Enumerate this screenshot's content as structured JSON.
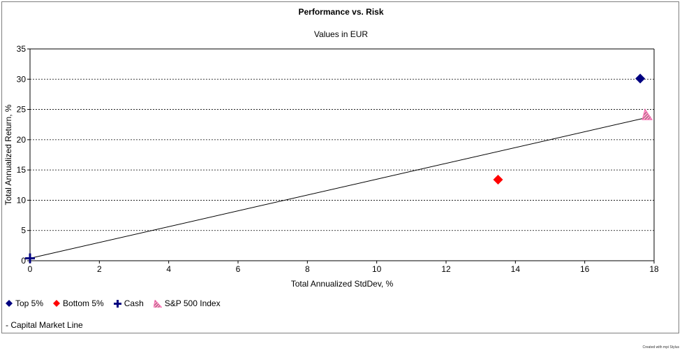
{
  "chart_data": {
    "type": "scatter",
    "title": "Performance vs. Risk",
    "subtitle": "Values in EUR",
    "xlabel": "Total Annualized StdDev, %",
    "ylabel": "Total Annualized Return, %",
    "xlim": [
      0,
      18
    ],
    "ylim": [
      0,
      35
    ],
    "xticks": [
      "0",
      "2",
      "4",
      "6",
      "8",
      "10",
      "12",
      "14",
      "16",
      "18"
    ],
    "yticks": [
      "0",
      "5",
      "10",
      "15",
      "20",
      "25",
      "30",
      "35"
    ],
    "grid": "horizontal dotted",
    "series": [
      {
        "name": "Top 5%",
        "marker": "diamond",
        "color": "#000080",
        "x": 17.6,
        "y": 30.1
      },
      {
        "name": "Bottom 5%",
        "marker": "diamond",
        "color": "#ff0000",
        "x": 13.5,
        "y": 13.4
      },
      {
        "name": "Cash",
        "marker": "plus",
        "color": "#000080",
        "x": 0.0,
        "y": 0.4
      },
      {
        "name": "S&P 500 Index",
        "marker": "hatched-triangle",
        "color": "#ff69b4",
        "x": 17.8,
        "y": 24.0
      }
    ],
    "line": {
      "name": "- Capital Market Line",
      "x": [
        0.0,
        17.9
      ],
      "y": [
        0.4,
        23.8
      ]
    },
    "legend_position": "bottom-left"
  },
  "footer": {
    "credit": "Created with mpi Stylus"
  }
}
